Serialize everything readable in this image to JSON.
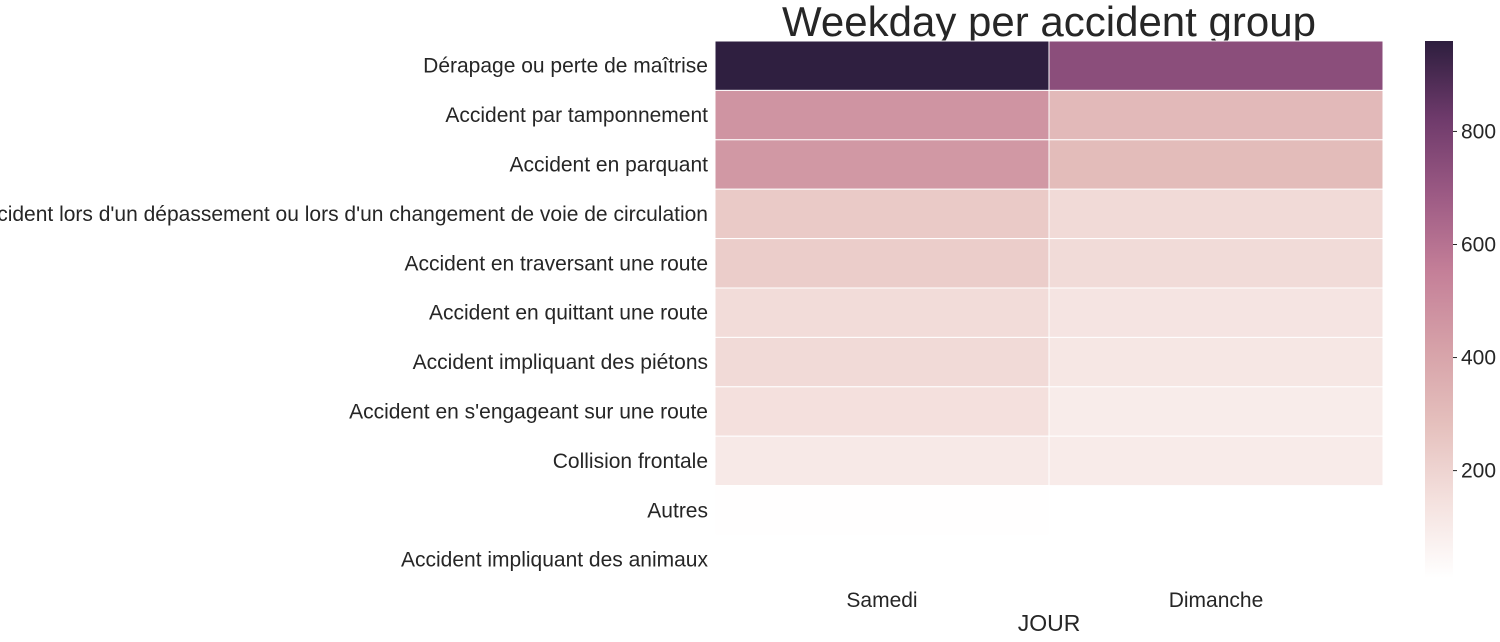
{
  "chart_data": {
    "type": "heatmap",
    "title": "Weekday per accident group",
    "xlabel": "JOUR",
    "ylabel": "",
    "columns": [
      "Samedi",
      "Dimanche"
    ],
    "rows": [
      "Dérapage ou perte de maîtrise",
      "Accident par tamponnement",
      "Accident en parquant",
      "Accident lors d'un dépassement ou lors d'un changement de voie de circulation",
      "Accident en traversant une route",
      "Accident en quittant une route",
      "Accident impliquant des piétons",
      "Accident en s'engageant sur une route",
      "Collision frontale",
      "Autres",
      "Accident impliquant des animaux"
    ],
    "values": [
      [
        955,
        740
      ],
      [
        470,
        310
      ],
      [
        455,
        300
      ],
      [
        240,
        175
      ],
      [
        230,
        170
      ],
      [
        165,
        130
      ],
      [
        175,
        120
      ],
      [
        150,
        95
      ],
      [
        110,
        100
      ],
      [
        15,
        null
      ],
      [
        null,
        null
      ]
    ],
    "colorbar": {
      "min": 10,
      "max": 960,
      "ticks": [
        200,
        400,
        600,
        800
      ],
      "colors": [
        "#ffffff",
        "#f4e1de",
        "#e5c0bd",
        "#d6a1a8",
        "#c47f98",
        "#9c5a84",
        "#6e3a6b",
        "#2d1e3e"
      ]
    }
  }
}
